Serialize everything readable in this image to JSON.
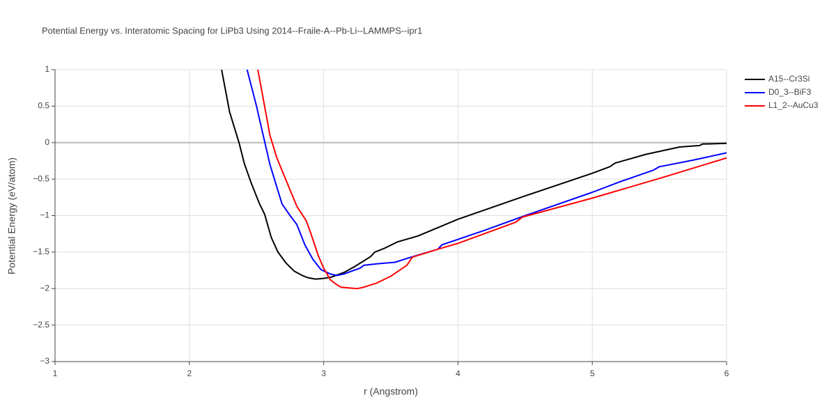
{
  "chart_data": {
    "type": "line",
    "title": "Potential Energy vs. Interatomic Spacing for LiPb3 Using 2014--Fraile-A--Pb-Li--LAMMPS--ipr1",
    "x_label": "r (Angstrom)",
    "y_label": "Potential Energy (eV/atom)",
    "xlim": [
      1,
      6
    ],
    "ylim": [
      -3,
      1
    ],
    "xticks": [
      1,
      2,
      3,
      4,
      5,
      6
    ],
    "yticks": [
      {
        "value": -3,
        "label": "−3"
      },
      {
        "value": -2.5,
        "label": "−2.5"
      },
      {
        "value": -2,
        "label": "−2"
      },
      {
        "value": -1.5,
        "label": "−1.5"
      },
      {
        "value": -1,
        "label": "−1"
      },
      {
        "value": -0.5,
        "label": "−0.5"
      },
      0,
      0.5,
      1
    ],
    "grid": true,
    "legend": "right",
    "series": [
      {
        "name": "A15--Cr3Si",
        "color": "#000000",
        "x": [
          2.24,
          2.3,
          2.37,
          2.41,
          2.46,
          2.52,
          2.56,
          2.61,
          2.66,
          2.72,
          2.78,
          2.84,
          2.88,
          2.94,
          3.0,
          3.06,
          3.15,
          3.22,
          3.3,
          3.35,
          3.38,
          3.45,
          3.55,
          3.7,
          4.0,
          4.5,
          5.0,
          5.13,
          5.17,
          5.4,
          5.65,
          5.8,
          5.82,
          6.0
        ],
        "values": [
          1.0,
          0.42,
          0.0,
          -0.29,
          -0.55,
          -0.83,
          -0.98,
          -1.3,
          -1.5,
          -1.65,
          -1.76,
          -1.82,
          -1.85,
          -1.87,
          -1.86,
          -1.84,
          -1.78,
          -1.71,
          -1.62,
          -1.56,
          -1.5,
          -1.45,
          -1.36,
          -1.28,
          -1.05,
          -0.73,
          -0.42,
          -0.33,
          -0.28,
          -0.16,
          -0.06,
          -0.04,
          -0.02,
          -0.01
        ]
      },
      {
        "name": "D0_3--BiF3",
        "color": "#0000ff",
        "x": [
          2.43,
          2.5,
          2.55,
          2.6,
          2.65,
          2.69,
          2.75,
          2.8,
          2.86,
          2.92,
          2.98,
          3.05,
          3.1,
          3.15,
          3.27,
          3.3,
          3.4,
          3.53,
          3.65,
          3.85,
          3.88,
          4.2,
          4.5,
          5.0,
          5.2,
          5.45,
          5.5,
          5.75,
          6.0
        ],
        "values": [
          1.0,
          0.5,
          0.1,
          -0.3,
          -0.6,
          -0.84,
          -1.0,
          -1.12,
          -1.4,
          -1.6,
          -1.74,
          -1.8,
          -1.82,
          -1.8,
          -1.72,
          -1.68,
          -1.66,
          -1.64,
          -1.57,
          -1.46,
          -1.4,
          -1.2,
          -1.0,
          -0.68,
          -0.54,
          -0.38,
          -0.33,
          -0.24,
          -0.14
        ]
      },
      {
        "name": "L1_2--AuCu3",
        "color": "#ff0000",
        "x": [
          2.51,
          2.56,
          2.6,
          2.65,
          2.69,
          2.75,
          2.8,
          2.87,
          2.9,
          2.96,
          3.0,
          3.05,
          3.1,
          3.13,
          3.25,
          3.3,
          3.4,
          3.5,
          3.62,
          3.66,
          3.85,
          4.0,
          4.43,
          4.48,
          5.0,
          5.5,
          6.0
        ],
        "values": [
          1.0,
          0.5,
          0.1,
          -0.2,
          -0.38,
          -0.65,
          -0.87,
          -1.07,
          -1.22,
          -1.55,
          -1.72,
          -1.88,
          -1.95,
          -1.98,
          -2.0,
          -1.98,
          -1.92,
          -1.83,
          -1.68,
          -1.57,
          -1.46,
          -1.38,
          -1.09,
          -1.02,
          -0.76,
          -0.49,
          -0.21
        ]
      }
    ]
  }
}
